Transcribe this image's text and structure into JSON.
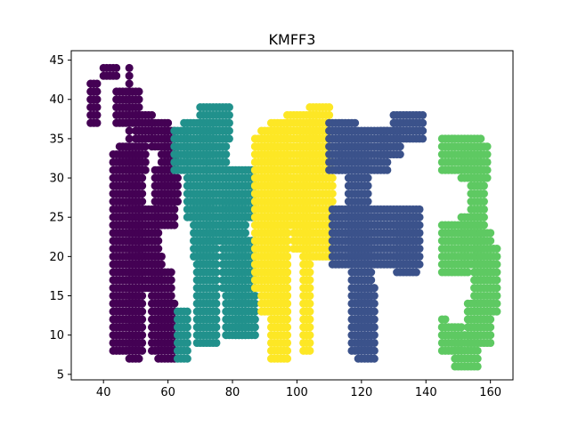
{
  "chart_data": {
    "type": "scatter",
    "title": "KMFF3",
    "xlabel": "",
    "ylabel": "",
    "xlim": [
      30,
      167
    ],
    "ylim": [
      4.3,
      46.2
    ],
    "xticks": [
      40,
      60,
      80,
      100,
      120,
      140,
      160
    ],
    "yticks": [
      5,
      10,
      15,
      20,
      25,
      30,
      35,
      40,
      45
    ],
    "grid": false,
    "legend": "none",
    "point_radius_data_x": 1.25,
    "series": [
      {
        "color": "#440154",
        "segments": [
          [
            36,
            38.5,
            42,
            37
          ],
          [
            40,
            44,
            43,
            44
          ],
          [
            44,
            51,
            41,
            37
          ],
          [
            48,
            48,
            44,
            34
          ],
          [
            50,
            55,
            38,
            35
          ],
          [
            55,
            60,
            37,
            34
          ],
          [
            59,
            62,
            36,
            32
          ],
          [
            45,
            53,
            34,
            31
          ],
          [
            43,
            52,
            33,
            8
          ],
          [
            48,
            51,
            33,
            7
          ],
          [
            51,
            57,
            26,
            20
          ],
          [
            56,
            62,
            31,
            24
          ],
          [
            58,
            63,
            33,
            27
          ],
          [
            52,
            58,
            20,
            16
          ],
          [
            55,
            61,
            18,
            8
          ],
          [
            57,
            62,
            14,
            7
          ]
        ]
      },
      {
        "color": "#21918c",
        "segments": [
          [
            62,
            66,
            36,
            31
          ],
          [
            65,
            74,
            37,
            33
          ],
          [
            70,
            79,
            39,
            35
          ],
          [
            66,
            72,
            34,
            25
          ],
          [
            68,
            74,
            28,
            20
          ],
          [
            72,
            78,
            34,
            22
          ],
          [
            77,
            84,
            28,
            16
          ],
          [
            79,
            87,
            31,
            25
          ],
          [
            81,
            87,
            22,
            10
          ],
          [
            78,
            84,
            16,
            10
          ],
          [
            69,
            75,
            22,
            9
          ],
          [
            63,
            66,
            13,
            7
          ]
        ]
      },
      {
        "color": "#fde725",
        "segments": [
          [
            87,
            93,
            35,
            16
          ],
          [
            89,
            97,
            36,
            13
          ],
          [
            92,
            97,
            37,
            7
          ],
          [
            96,
            103,
            32,
            24
          ],
          [
            99,
            104,
            29,
            21
          ],
          [
            102,
            111,
            32,
            20
          ],
          [
            102,
            104,
            25,
            8
          ],
          [
            97,
            106,
            38,
            33
          ],
          [
            104,
            110,
            39,
            33
          ],
          [
            101,
            108,
            36,
            30
          ]
        ]
      },
      {
        "color": "#3b528b",
        "segments": [
          [
            110,
            118,
            37,
            31
          ],
          [
            113,
            122,
            35,
            31
          ],
          [
            119,
            128,
            36,
            31
          ],
          [
            126,
            132,
            36,
            33
          ],
          [
            130,
            139,
            38,
            35
          ],
          [
            116,
            122,
            31,
            20
          ],
          [
            111,
            138,
            26,
            19
          ],
          [
            117,
            123,
            22,
            8
          ],
          [
            119,
            124,
            16,
            7
          ],
          [
            131,
            137,
            25,
            18
          ]
        ]
      },
      {
        "color": "#5ec962",
        "segments": [
          [
            145,
            157,
            35,
            31
          ],
          [
            151,
            159,
            34,
            30
          ],
          [
            154,
            158,
            30,
            22
          ],
          [
            145,
            153,
            24,
            18
          ],
          [
            151,
            157,
            25,
            19
          ],
          [
            155,
            160,
            23,
            18
          ],
          [
            155,
            162,
            21,
            13
          ],
          [
            153,
            160,
            14,
            9
          ],
          [
            149,
            156,
            10,
            6
          ],
          [
            145,
            151,
            11,
            8
          ],
          [
            145,
            146,
            12,
            10
          ]
        ]
      }
    ]
  }
}
